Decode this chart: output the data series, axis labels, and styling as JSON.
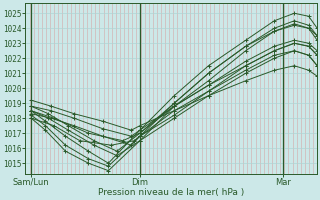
{
  "bg_color": "#cce8e8",
  "grid_color_v": "#c8b0b0",
  "grid_color_h": "#b8d8d8",
  "line_color": "#2a5a2a",
  "ylabel_text": "Pression niveau de la mer( hPa )",
  "xtick_labels": [
    "Sam/Lun",
    "Dim",
    "Mar"
  ],
  "xtick_positions": [
    0.0,
    0.38,
    0.88
  ],
  "yticks": [
    1015,
    1016,
    1017,
    1018,
    1019,
    1020,
    1021,
    1022,
    1023,
    1024,
    1025
  ],
  "ylim": [
    1014.3,
    1025.7
  ],
  "xlim": [
    -0.02,
    1.0
  ],
  "vline_positions": [
    0.0,
    0.38,
    0.88
  ],
  "num_vlines": 72,
  "series": [
    {
      "x": [
        0.0,
        0.05,
        0.12,
        0.2,
        0.27,
        0.38,
        0.5,
        0.62,
        0.75,
        0.85,
        0.92,
        0.97,
        1.0
      ],
      "y": [
        1018.5,
        1017.8,
        1016.8,
        1015.8,
        1015.0,
        1017.2,
        1019.5,
        1021.5,
        1023.2,
        1024.5,
        1025.0,
        1024.8,
        1024.0
      ]
    },
    {
      "x": [
        0.0,
        0.05,
        0.12,
        0.2,
        0.27,
        0.38,
        0.5,
        0.62,
        0.75,
        0.85,
        0.92,
        0.97,
        1.0
      ],
      "y": [
        1018.2,
        1017.5,
        1016.2,
        1015.3,
        1014.8,
        1016.8,
        1019.0,
        1021.0,
        1022.8,
        1024.0,
        1024.5,
        1024.2,
        1023.5
      ]
    },
    {
      "x": [
        0.0,
        0.05,
        0.12,
        0.2,
        0.27,
        0.38,
        0.5,
        0.62,
        0.75,
        0.85,
        0.92,
        0.97,
        1.0
      ],
      "y": [
        1018.0,
        1017.2,
        1015.8,
        1015.0,
        1014.5,
        1016.5,
        1018.8,
        1020.5,
        1022.5,
        1023.8,
        1024.3,
        1024.0,
        1023.2
      ]
    },
    {
      "x": [
        0.0,
        0.06,
        0.13,
        0.22,
        0.3,
        0.38,
        0.5,
        0.62,
        0.75,
        0.85,
        0.92,
        0.97,
        1.0
      ],
      "y": [
        1018.8,
        1018.3,
        1017.5,
        1016.5,
        1015.8,
        1017.0,
        1018.8,
        1020.2,
        1021.5,
        1022.5,
        1023.0,
        1022.8,
        1022.2
      ]
    },
    {
      "x": [
        0.0,
        0.06,
        0.13,
        0.22,
        0.3,
        0.38,
        0.5,
        0.62,
        0.75,
        0.85,
        0.92,
        0.97,
        1.0
      ],
      "y": [
        1018.5,
        1018.0,
        1017.2,
        1016.2,
        1015.5,
        1016.5,
        1018.0,
        1019.5,
        1021.0,
        1022.0,
        1022.5,
        1022.2,
        1021.5
      ]
    },
    {
      "x": [
        0.0,
        0.07,
        0.15,
        0.25,
        0.35,
        0.38,
        0.5,
        0.62,
        0.75,
        0.85,
        0.92,
        0.97,
        1.0
      ],
      "y": [
        1019.2,
        1018.8,
        1018.3,
        1017.8,
        1017.2,
        1017.5,
        1018.5,
        1019.5,
        1020.5,
        1021.2,
        1021.5,
        1021.2,
        1020.8
      ]
    },
    {
      "x": [
        0.0,
        0.07,
        0.15,
        0.25,
        0.35,
        0.38,
        0.5,
        0.62,
        0.75,
        0.85,
        0.92,
        0.97,
        1.0
      ],
      "y": [
        1018.8,
        1018.5,
        1018.0,
        1017.3,
        1016.8,
        1017.2,
        1018.8,
        1020.2,
        1021.8,
        1022.8,
        1023.2,
        1023.0,
        1022.5
      ]
    },
    {
      "x": [
        0.0,
        0.07,
        0.15,
        0.25,
        0.35,
        0.38,
        0.5,
        0.62,
        0.75,
        0.85,
        0.92,
        0.97,
        1.0
      ],
      "y": [
        1018.3,
        1018.0,
        1017.5,
        1016.8,
        1016.2,
        1016.8,
        1018.2,
        1019.8,
        1021.5,
        1022.5,
        1023.0,
        1022.8,
        1022.2
      ]
    },
    {
      "x": [
        0.0,
        0.08,
        0.17,
        0.28,
        0.36,
        0.38,
        0.5,
        0.62,
        0.75,
        0.85,
        0.92,
        0.97,
        1.0
      ],
      "y": [
        1018.0,
        1017.5,
        1016.5,
        1016.2,
        1016.5,
        1016.8,
        1018.5,
        1019.8,
        1021.2,
        1022.2,
        1022.5,
        1022.2,
        1021.5
      ]
    },
    {
      "x": [
        0.0,
        0.08,
        0.2,
        0.32,
        0.38,
        0.5,
        0.62,
        0.75,
        0.85,
        0.92,
        0.97,
        1.0
      ],
      "y": [
        1018.5,
        1018.0,
        1017.0,
        1016.5,
        1017.0,
        1019.0,
        1021.0,
        1022.8,
        1023.8,
        1024.2,
        1024.0,
        1023.5
      ]
    }
  ]
}
